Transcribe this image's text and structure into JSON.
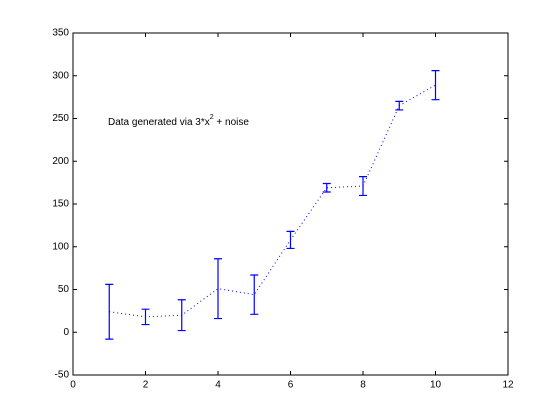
{
  "chart_data": {
    "type": "errorbar",
    "x": [
      1,
      2,
      3,
      4,
      5,
      6,
      7,
      8,
      9,
      10
    ],
    "series": [
      {
        "color": "#0000ff",
        "values": [
          24,
          18,
          20,
          51,
          44,
          108,
          169,
          171,
          265,
          289
        ],
        "errors": [
          32,
          9,
          18,
          35,
          23,
          10,
          5,
          11,
          5,
          17
        ]
      }
    ],
    "xlim": [
      0,
      12
    ],
    "xticks": [
      0,
      2,
      4,
      6,
      8,
      10,
      12
    ],
    "ylim": [
      -50,
      350
    ],
    "yticks": [
      -50,
      0,
      50,
      100,
      150,
      200,
      250,
      300,
      350
    ],
    "grid": false,
    "annotation": [
      "Data generated via 3*x",
      "2",
      " + noise"
    ]
  }
}
